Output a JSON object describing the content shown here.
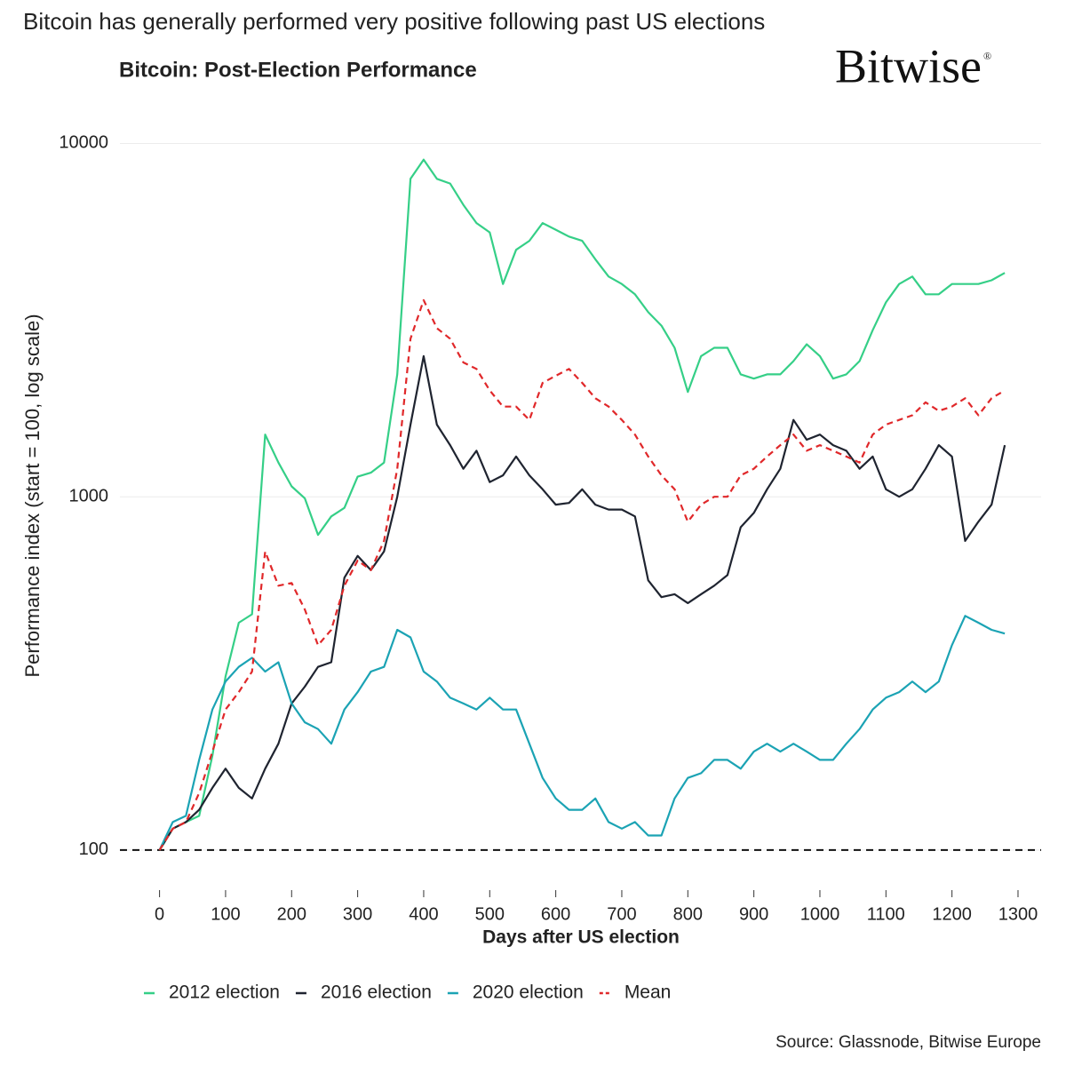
{
  "chart_data": {
    "type": "line",
    "title": "Bitcoin has generally performed very positive following past US elections",
    "subtitle": "Bitcoin: Post-Election Performance",
    "logo": "Bitwise",
    "logo_mark": "®",
    "x_label": "Days after US election",
    "y_label": "Performance index (start = 100, log scale)",
    "source": "Source: Glassnode, Bitwise Europe",
    "log_y": true,
    "grid": true,
    "legend": "bottom",
    "hline": 100,
    "xlim": [
      -60,
      1335
    ],
    "ylim": [
      85,
      11000
    ],
    "xticks": [
      0,
      100,
      200,
      300,
      400,
      500,
      600,
      700,
      800,
      900,
      1000,
      1100,
      1200,
      1300
    ],
    "yticks": [
      100,
      1000,
      10000
    ],
    "x": [
      0,
      20,
      40,
      60,
      80,
      100,
      120,
      140,
      160,
      180,
      200,
      220,
      240,
      260,
      280,
      300,
      320,
      340,
      360,
      380,
      400,
      420,
      440,
      460,
      480,
      500,
      520,
      540,
      560,
      580,
      600,
      620,
      640,
      660,
      680,
      700,
      720,
      740,
      760,
      780,
      800,
      820,
      840,
      860,
      880,
      900,
      920,
      940,
      960,
      980,
      1000,
      1020,
      1040,
      1060,
      1080,
      1100,
      1120,
      1140,
      1160,
      1180,
      1200,
      1220,
      1240,
      1260,
      1280
    ],
    "series": [
      {
        "name": "2012 election",
        "color": "#35cf87",
        "dashed": false,
        "values": [
          100,
          115,
          120,
          125,
          185,
          310,
          440,
          465,
          1500,
          1250,
          1070,
          990,
          780,
          880,
          930,
          1140,
          1170,
          1250,
          2220,
          7940,
          9000,
          7940,
          7700,
          6700,
          5950,
          5600,
          4000,
          5000,
          5300,
          5950,
          5700,
          5450,
          5300,
          4700,
          4200,
          4000,
          3740,
          3330,
          3050,
          2640,
          1980,
          2500,
          2640,
          2640,
          2220,
          2160,
          2220,
          2220,
          2420,
          2700,
          2500,
          2160,
          2220,
          2420,
          2960,
          3550,
          4000,
          4200,
          3740,
          3740,
          4000,
          4000,
          4000,
          4100,
          4300
        ]
      },
      {
        "name": "2016 election",
        "color": "#1f2430",
        "dashed": false,
        "values": [
          100,
          115,
          120,
          130,
          150,
          170,
          150,
          140,
          170,
          200,
          260,
          290,
          330,
          340,
          590,
          680,
          620,
          700,
          1000,
          1600,
          2500,
          1600,
          1400,
          1200,
          1350,
          1100,
          1150,
          1300,
          1150,
          1050,
          950,
          960,
          1050,
          950,
          920,
          920,
          880,
          580,
          520,
          530,
          500,
          530,
          560,
          600,
          820,
          900,
          1050,
          1200,
          1650,
          1450,
          1500,
          1400,
          1350,
          1200,
          1300,
          1050,
          1000,
          1050,
          1200,
          1400,
          1300,
          750,
          850,
          950,
          1400
        ]
      },
      {
        "name": "2020 election",
        "color": "#1ba3b4",
        "dashed": false,
        "values": [
          100,
          120,
          125,
          180,
          250,
          300,
          330,
          350,
          320,
          340,
          260,
          230,
          220,
          200,
          250,
          280,
          320,
          330,
          420,
          400,
          320,
          300,
          270,
          260,
          250,
          270,
          250,
          250,
          200,
          160,
          140,
          130,
          130,
          140,
          120,
          115,
          120,
          110,
          110,
          140,
          160,
          165,
          180,
          180,
          170,
          190,
          200,
          190,
          200,
          190,
          180,
          180,
          200,
          220,
          250,
          270,
          280,
          300,
          280,
          300,
          380,
          460,
          440,
          420,
          410
        ]
      },
      {
        "name": "Mean",
        "color": "#e0282a",
        "dashed": true,
        "values": [
          100,
          115,
          120,
          145,
          190,
          250,
          280,
          320,
          700,
          560,
          570,
          480,
          380,
          420,
          560,
          660,
          620,
          750,
          1200,
          2800,
          3600,
          3000,
          2800,
          2400,
          2300,
          2000,
          1800,
          1800,
          1650,
          2100,
          2200,
          2300,
          2100,
          1900,
          1800,
          1650,
          1500,
          1300,
          1150,
          1050,
          850,
          950,
          1000,
          1000,
          1150,
          1200,
          1300,
          1400,
          1500,
          1350,
          1400,
          1350,
          1300,
          1250,
          1500,
          1600,
          1650,
          1700,
          1850,
          1750,
          1800,
          1900,
          1700,
          1900,
          2000
        ]
      }
    ]
  }
}
